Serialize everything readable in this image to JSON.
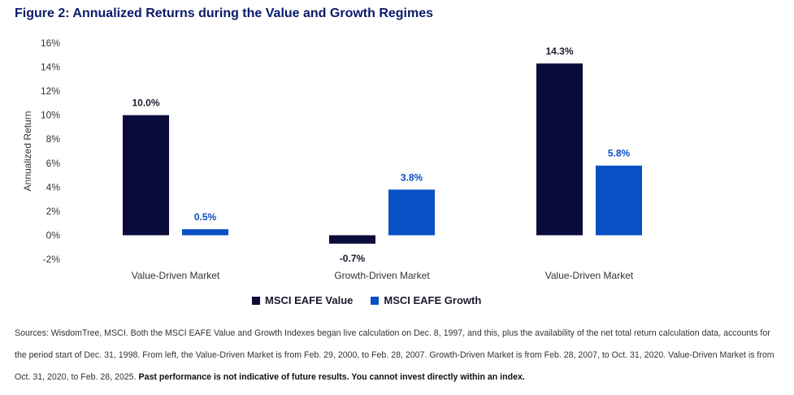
{
  "title": "Figure 2: Annualized Returns during the Value and Growth Regimes",
  "colors": {
    "value": "#0b0b3b",
    "growth": "#0a4fc4",
    "value_label": "#1a1a2e",
    "growth_label": "#0a4fc4"
  },
  "chart_data": {
    "type": "bar",
    "title": "Figure 2: Annualized Returns during the Value and Growth Regimes",
    "ylabel": "Annualized Return",
    "xlabel": "",
    "categories": [
      "Value-Driven Market",
      "Growth-Driven Market",
      "Value-Driven Market"
    ],
    "series": [
      {
        "name": "MSCI EAFE Value",
        "values": [
          10.0,
          -0.7,
          14.3
        ],
        "labels": [
          "10.0%",
          "-0.7%",
          "14.3%"
        ]
      },
      {
        "name": "MSCI EAFE Growth",
        "values": [
          0.5,
          3.8,
          5.8
        ],
        "labels": [
          "0.5%",
          "3.8%",
          "5.8%"
        ]
      }
    ],
    "ylim": [
      -2,
      16
    ],
    "yticks": [
      -2,
      0,
      2,
      4,
      6,
      8,
      10,
      12,
      14,
      16
    ],
    "ytick_labels": [
      "-2%",
      "0%",
      "2%",
      "4%",
      "6%",
      "8%",
      "10%",
      "12%",
      "14%",
      "16%"
    ],
    "grid": false,
    "legend": "bottom-center"
  },
  "footnote": {
    "text": "Sources: WisdomTree, MSCI. Both the MSCI EAFE Value and Growth Indexes began live calculation on Dec. 8, 1997, and this, plus the availability of the net total return calculation data, accounts for the period start of Dec. 31, 1998. From left, the Value-Driven Market is from Feb. 29, 2000, to Feb. 28, 2007. Growth-Driven Market is from Feb. 28, 2007, to Oct. 31, 2020. Value-Driven Market is from Oct. 31, 2020, to Feb. 28, 2025.",
    "bold": "Past performance is not indicative of future results. You cannot invest directly within an index."
  }
}
